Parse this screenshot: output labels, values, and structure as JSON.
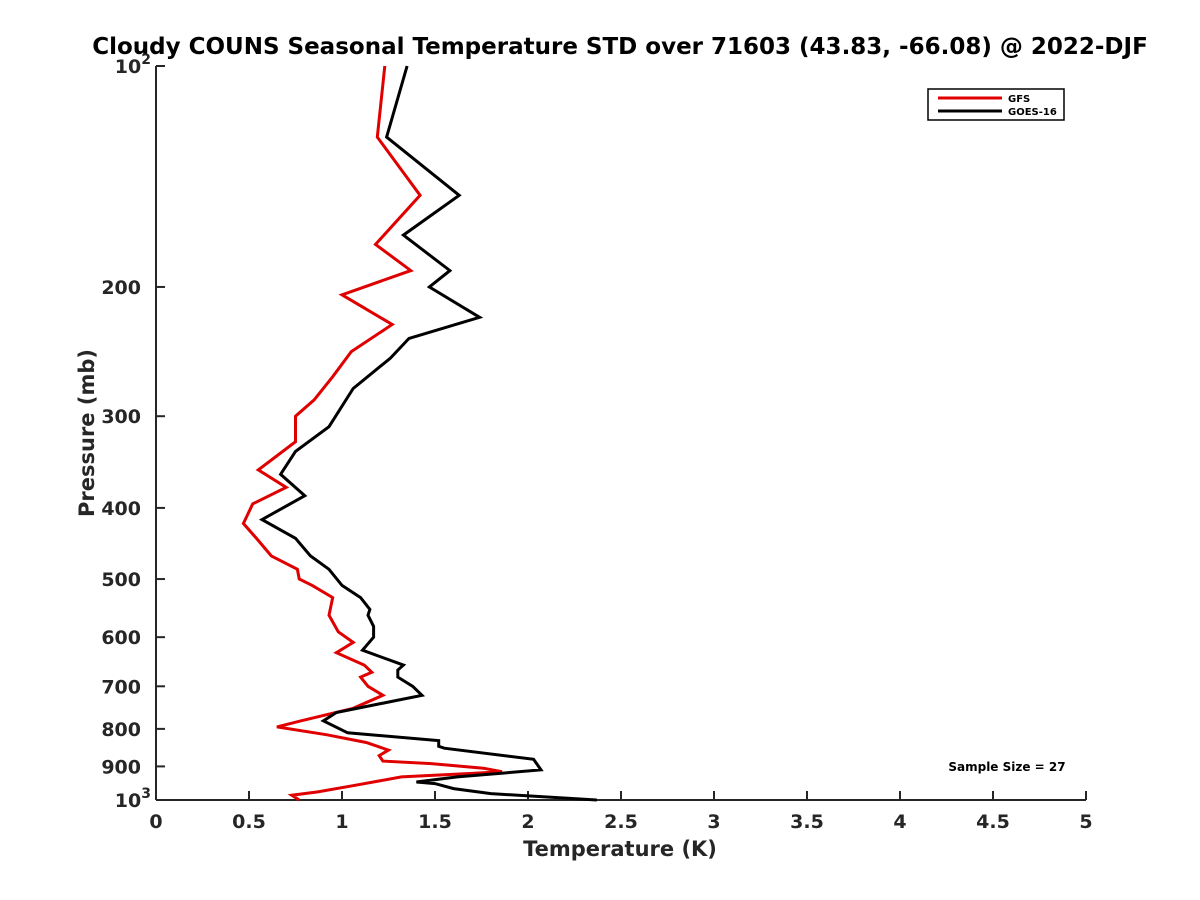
{
  "chart_data": {
    "type": "line",
    "title": "Cloudy COUNS Seasonal Temperature STD over 71603 (43.83, -66.08) @ 2022-DJF",
    "xlabel": "Temperature (K)",
    "ylabel": "Pressure (mb)",
    "xlim": [
      0,
      5
    ],
    "ylim": [
      100,
      1000
    ],
    "yscale": "log",
    "y_reversed": true,
    "x_ticks": [
      0,
      0.5,
      1,
      1.5,
      2,
      2.5,
      3,
      3.5,
      4,
      4.5,
      5
    ],
    "x_tick_labels": [
      "0",
      "0.5",
      "1",
      "1.5",
      "2",
      "2.5",
      "3",
      "3.5",
      "4",
      "4.5",
      "5"
    ],
    "y_ticks": [
      100,
      200,
      300,
      400,
      500,
      600,
      700,
      800,
      900,
      1000
    ],
    "y_tick_labels": [
      "10^2",
      "200",
      "300",
      "400",
      "500",
      "600",
      "700",
      "800",
      "900",
      "10^3"
    ],
    "legend_position": "top-right",
    "annotation": "Sample Size = 27",
    "series": [
      {
        "name": "GFS",
        "color": "#e00000",
        "points": [
          [
            1.23,
            100
          ],
          [
            1.19,
            125
          ],
          [
            1.42,
            150
          ],
          [
            1.18,
            175
          ],
          [
            1.37,
            190
          ],
          [
            1.0,
            205
          ],
          [
            1.27,
            225
          ],
          [
            1.05,
            245
          ],
          [
            0.95,
            265
          ],
          [
            0.85,
            285
          ],
          [
            0.75,
            300
          ],
          [
            0.75,
            325
          ],
          [
            0.55,
            355
          ],
          [
            0.7,
            375
          ],
          [
            0.52,
            395
          ],
          [
            0.47,
            420
          ],
          [
            0.54,
            440
          ],
          [
            0.62,
            465
          ],
          [
            0.76,
            485
          ],
          [
            0.77,
            500
          ],
          [
            0.84,
            510
          ],
          [
            0.95,
            530
          ],
          [
            0.93,
            560
          ],
          [
            0.98,
            590
          ],
          [
            1.06,
            610
          ],
          [
            0.97,
            630
          ],
          [
            1.12,
            655
          ],
          [
            1.16,
            670
          ],
          [
            1.1,
            680
          ],
          [
            1.14,
            700
          ],
          [
            1.22,
            720
          ],
          [
            1.06,
            750
          ],
          [
            0.78,
            780
          ],
          [
            0.65,
            795
          ],
          [
            0.92,
            815
          ],
          [
            1.13,
            835
          ],
          [
            1.25,
            855
          ],
          [
            1.2,
            870
          ],
          [
            1.22,
            885
          ],
          [
            1.48,
            892
          ],
          [
            1.76,
            905
          ],
          [
            1.86,
            915
          ],
          [
            1.7,
            920
          ],
          [
            1.32,
            930
          ],
          [
            1.07,
            955
          ],
          [
            0.87,
            975
          ],
          [
            0.73,
            985
          ],
          [
            0.77,
            1000
          ]
        ]
      },
      {
        "name": "GOES-16",
        "color": "#000000",
        "points": [
          [
            1.35,
            100
          ],
          [
            1.24,
            125
          ],
          [
            1.63,
            150
          ],
          [
            1.33,
            170
          ],
          [
            1.58,
            190
          ],
          [
            1.47,
            200
          ],
          [
            1.74,
            220
          ],
          [
            1.36,
            235
          ],
          [
            1.26,
            250
          ],
          [
            1.06,
            275
          ],
          [
            0.93,
            310
          ],
          [
            0.75,
            335
          ],
          [
            0.67,
            360
          ],
          [
            0.8,
            385
          ],
          [
            0.57,
            415
          ],
          [
            0.75,
            440
          ],
          [
            0.83,
            465
          ],
          [
            0.93,
            485
          ],
          [
            1.0,
            510
          ],
          [
            1.1,
            530
          ],
          [
            1.15,
            550
          ],
          [
            1.14,
            560
          ],
          [
            1.17,
            580
          ],
          [
            1.17,
            600
          ],
          [
            1.11,
            625
          ],
          [
            1.33,
            655
          ],
          [
            1.3,
            665
          ],
          [
            1.3,
            680
          ],
          [
            1.38,
            700
          ],
          [
            1.43,
            720
          ],
          [
            0.97,
            760
          ],
          [
            0.9,
            780
          ],
          [
            1.03,
            810
          ],
          [
            1.52,
            830
          ],
          [
            1.52,
            845
          ],
          [
            1.55,
            850
          ],
          [
            2.03,
            880
          ],
          [
            2.07,
            910
          ],
          [
            1.62,
            930
          ],
          [
            1.4,
            945
          ],
          [
            1.5,
            950
          ],
          [
            1.6,
            965
          ],
          [
            1.8,
            980
          ],
          [
            2.37,
            1000
          ]
        ]
      }
    ]
  }
}
